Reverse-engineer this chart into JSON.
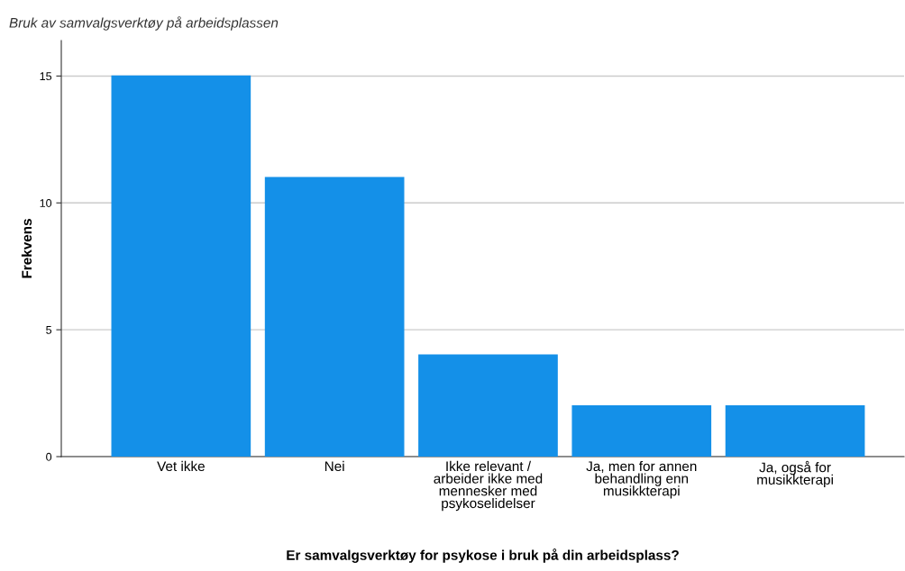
{
  "chart_data": {
    "type": "bar",
    "title": "Bruk av samvalgsverktøy på arbeidsplassen",
    "xlabel": "Er samvalgsverktøy for psykose i bruk på din arbeidsplass?",
    "ylabel": "Frekvens",
    "categories": [
      "Vet ikke",
      "Nei",
      "Ikke relevant / arbeider ikke med mennesker med psykoselidelser",
      "Ja, men for annen behandling enn musikkterapi",
      "Ja, også for musikkterapi"
    ],
    "values": [
      15,
      11,
      4,
      2,
      2
    ],
    "color": "#1490e8",
    "ylim": [
      0,
      16.4
    ],
    "yticks": [
      0,
      5,
      10,
      15
    ],
    "grid": "y"
  }
}
